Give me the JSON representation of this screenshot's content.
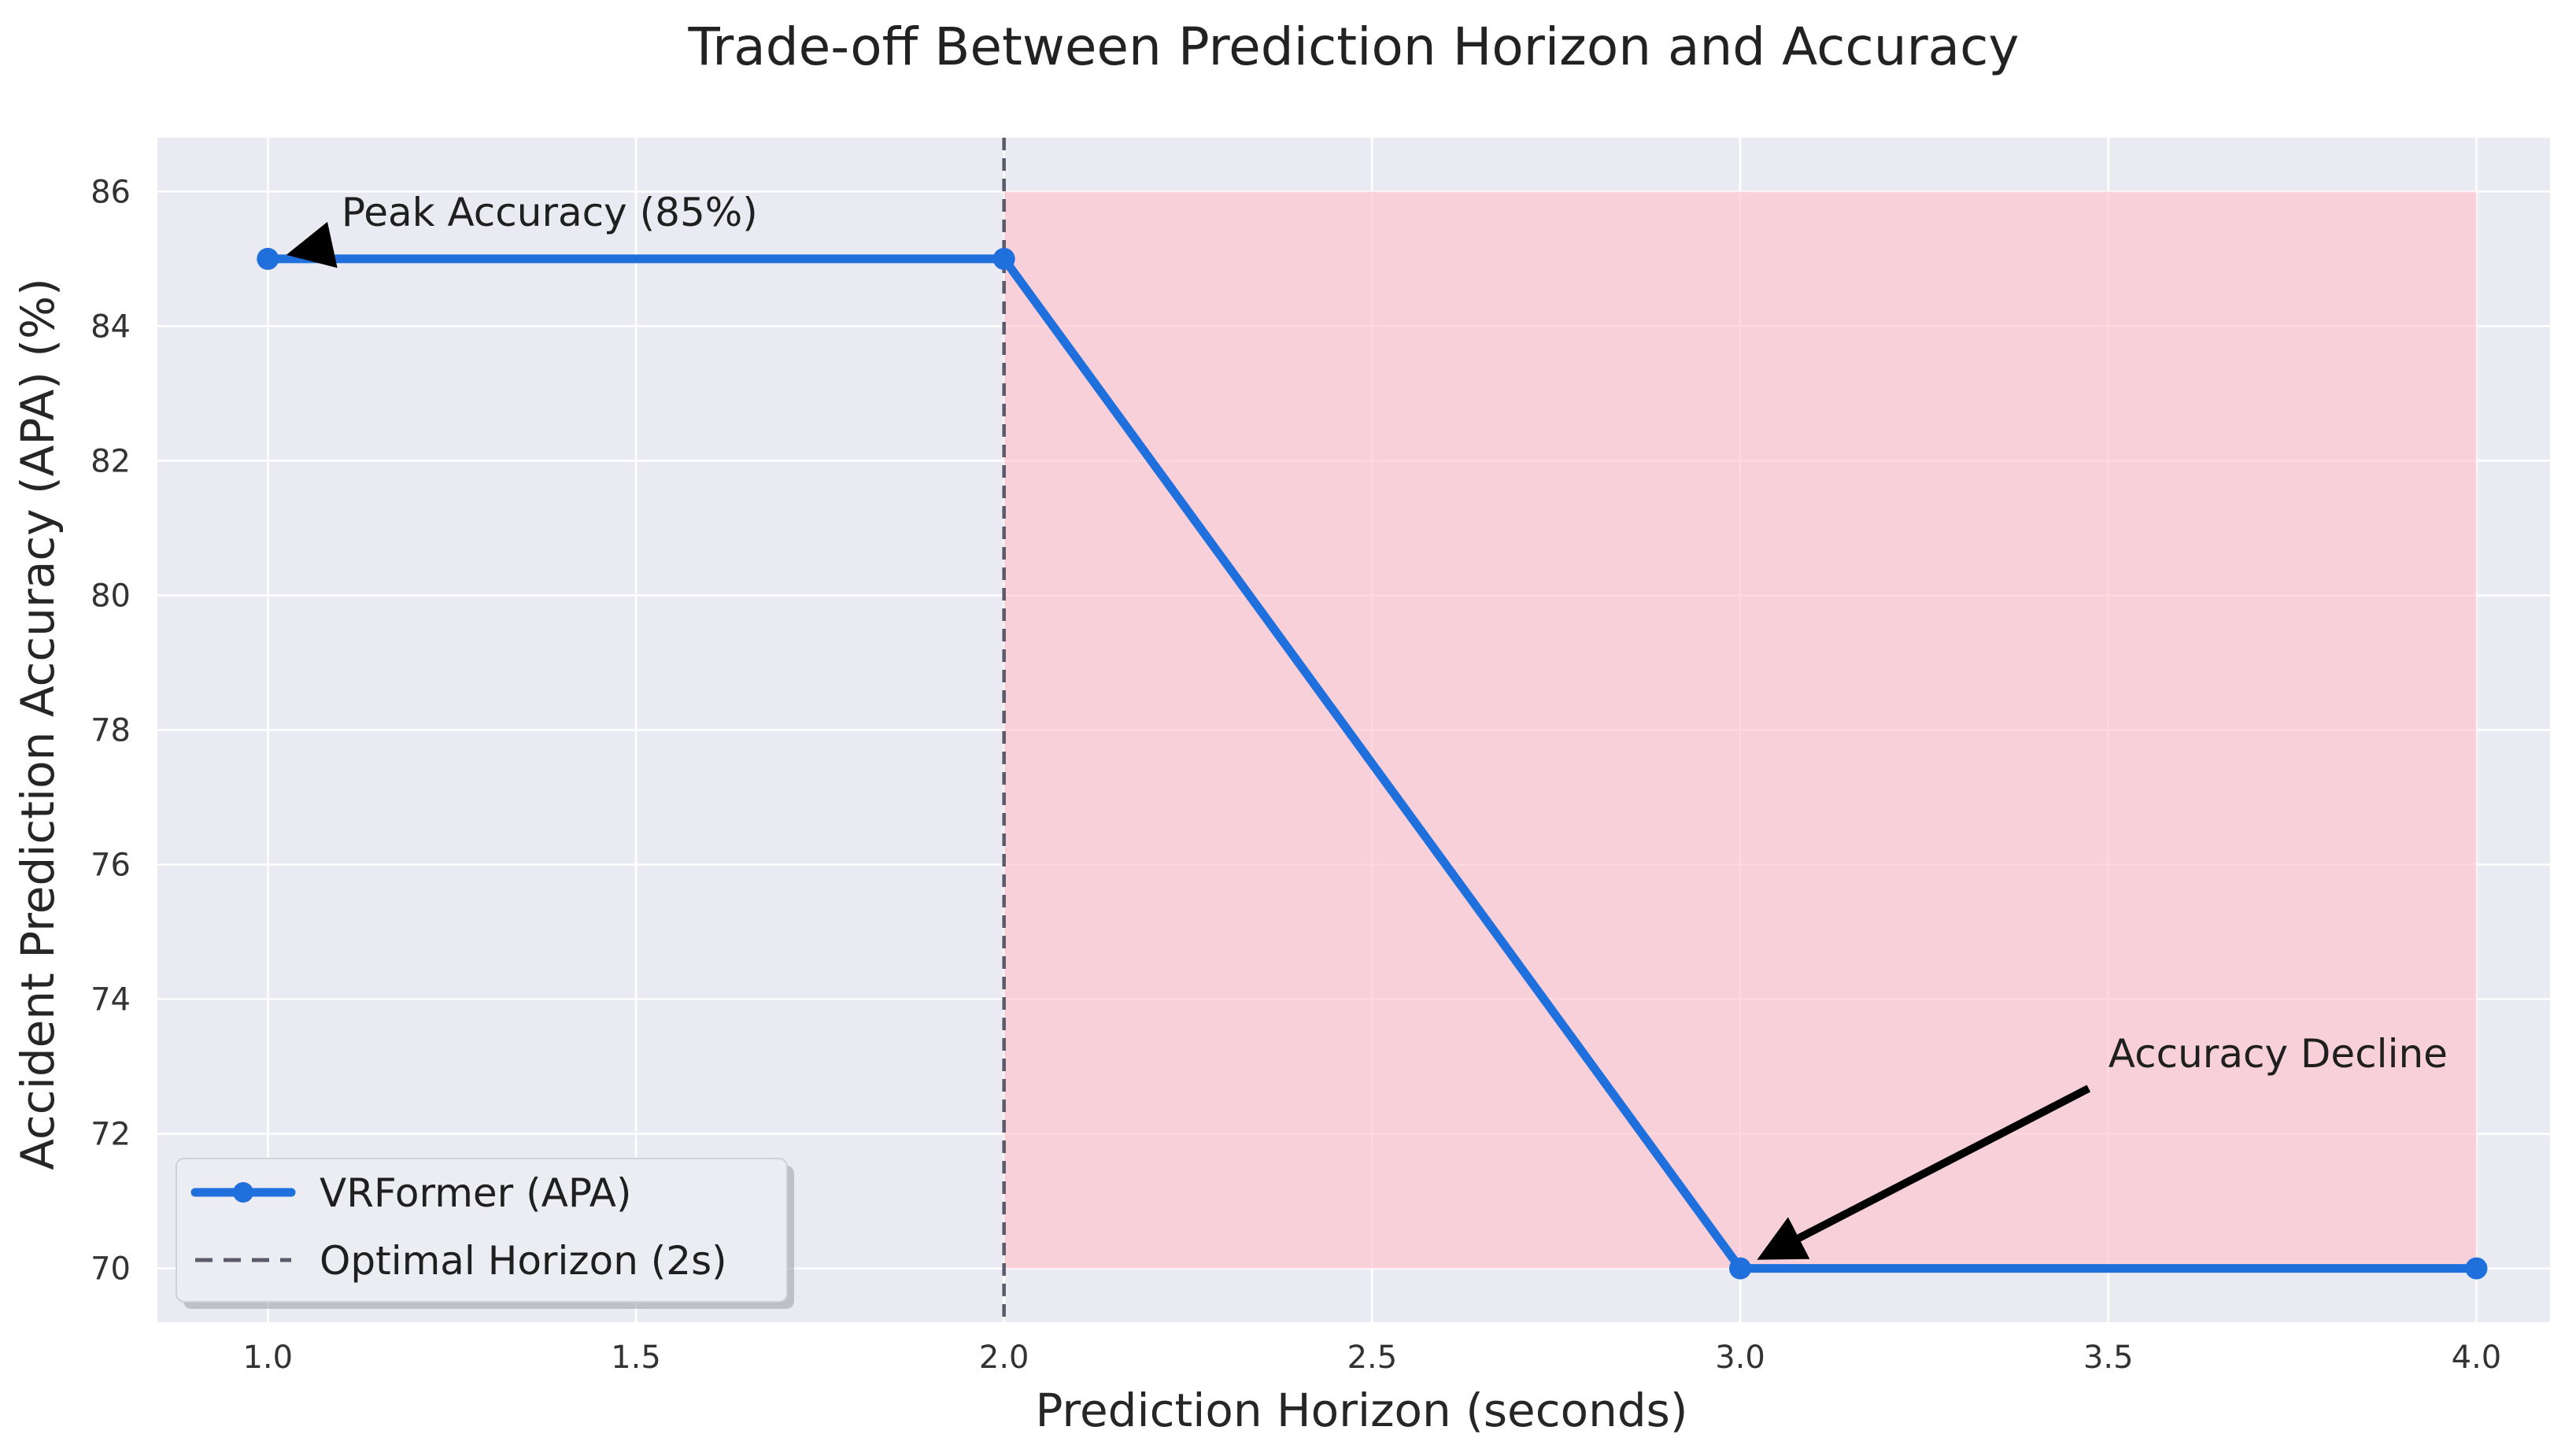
{
  "chart_data": {
    "type": "line",
    "title": "Trade-off Between Prediction Horizon and Accuracy",
    "xlabel": "Prediction Horizon (seconds)",
    "ylabel": "Accident Prediction Accuracy (APA) (%)",
    "xlim": [
      0.85,
      4.1
    ],
    "ylim": [
      69.2,
      86.8
    ],
    "xticks": [
      "1.0",
      "1.5",
      "2.0",
      "2.5",
      "3.0",
      "3.5",
      "4.0"
    ],
    "yticks": [
      "70",
      "72",
      "74",
      "76",
      "78",
      "80",
      "82",
      "84",
      "86"
    ],
    "grid": true,
    "series": [
      {
        "name": "VRFormer (APA)",
        "x": [
          1.0,
          2.0,
          3.0,
          4.0
        ],
        "y": [
          85,
          85,
          70,
          70
        ],
        "color": "#1f6fdc",
        "marker": "circle"
      }
    ],
    "vline": {
      "x": 2.0,
      "label": "Optimal Horizon (2s)",
      "style": "dashed",
      "color": "#5a5a6a"
    },
    "shaded_region": {
      "x": [
        2.0,
        4.0
      ],
      "y": [
        70,
        86
      ],
      "color": "#ffc0cb"
    },
    "annotations": [
      {
        "text": "Peak Accuracy (85%)",
        "point": [
          1.0,
          85
        ],
        "text_pos": [
          1.1,
          85.7
        ]
      },
      {
        "text": "Accuracy Decline",
        "point": [
          3.0,
          70
        ],
        "text_pos": [
          3.5,
          73.2
        ]
      }
    ],
    "legend": {
      "position": "lower-left",
      "entries": [
        "VRFormer (APA)",
        "Optimal Horizon (2s)"
      ]
    },
    "colors": {
      "plot_background": "#eaeaf2",
      "grid": "#ffffff",
      "line": "#1f6fdc",
      "shade": "#ffc0cb",
      "vline": "#5a5a6a",
      "arrow": "#000000"
    }
  }
}
